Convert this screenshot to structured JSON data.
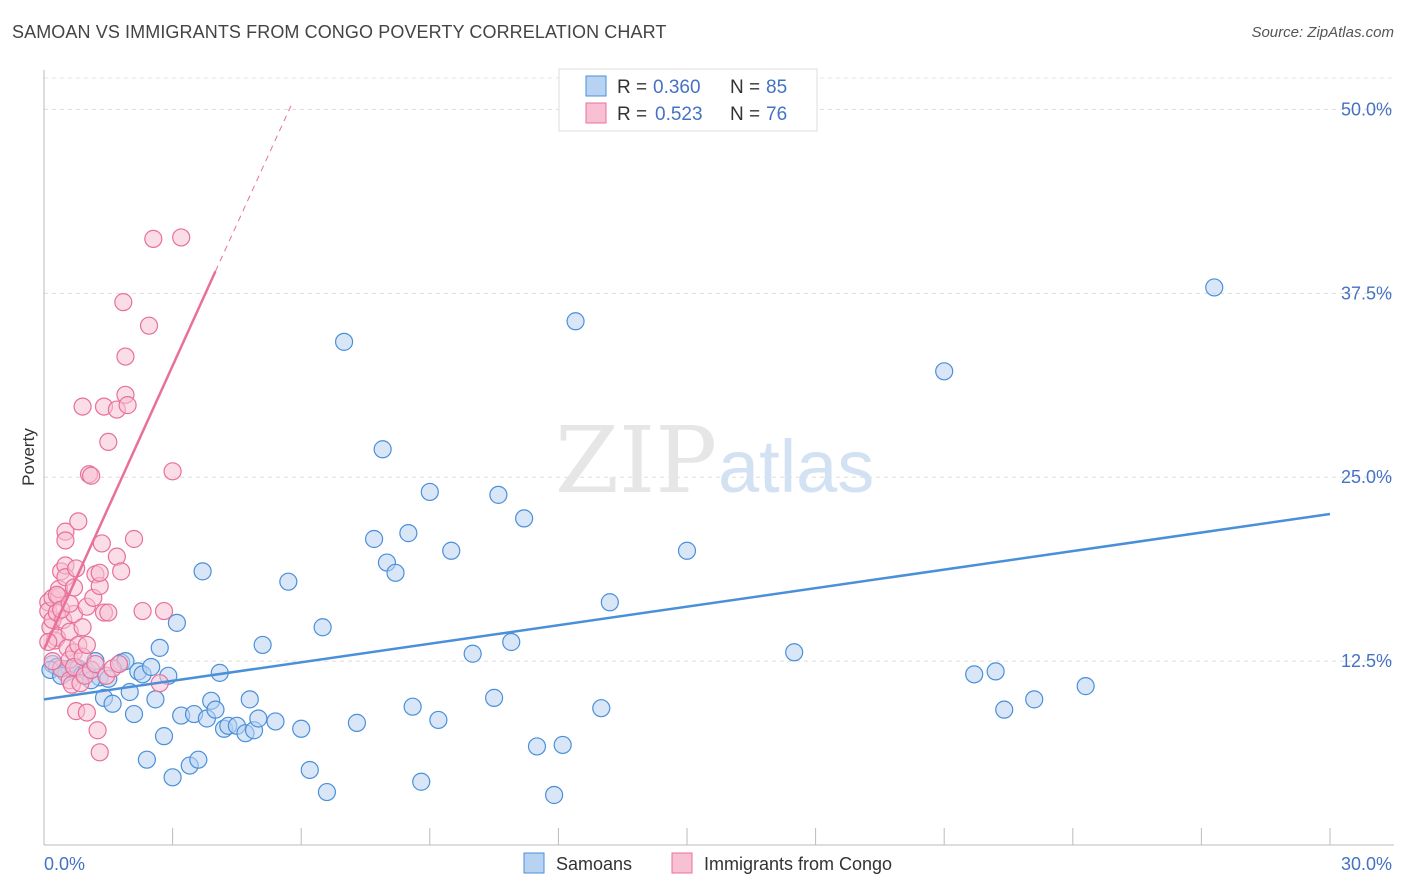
{
  "title": "SAMOAN VS IMMIGRANTS FROM CONGO POVERTY CORRELATION CHART",
  "source": "Source: ZipAtlas.com",
  "watermark": {
    "zip": "ZIP",
    "atlas": "atlas"
  },
  "colors": {
    "blue": "#4a90d9",
    "blue_fill": "#b8d2f2",
    "pink": "#e8709a",
    "pink_fill": "#f7c1d3",
    "axis_text": "#4472c4",
    "grid": "#dddddd"
  },
  "chart_data": {
    "type": "scatter",
    "title": "SAMOAN VS IMMIGRANTS FROM CONGO POVERTY CORRELATION CHART",
    "xlabel": "",
    "ylabel": "Poverty",
    "xlim": [
      0,
      30
    ],
    "ylim": [
      0,
      52
    ],
    "x_tick_labels": [
      "0.0%",
      "30.0%"
    ],
    "y_ticks": [
      12.5,
      25.0,
      37.5,
      50.0
    ],
    "y_tick_labels": [
      "12.5%",
      "25.0%",
      "37.5%",
      "50.0%"
    ],
    "legend_stats": [
      {
        "r_label": "R =",
        "r": "0.360",
        "n_label": "N =",
        "n": "85"
      },
      {
        "r_label": "R =",
        "r": "0.523",
        "n_label": "N =",
        "n": "76"
      }
    ],
    "series": [
      {
        "name": "Samoans",
        "color": "#4a90d9",
        "trend": {
          "x0": 0,
          "y0": 9.9,
          "x1": 30,
          "y1": 22.5
        },
        "points": [
          [
            0.2,
            12.3
          ],
          [
            0.3,
            12.1
          ],
          [
            0.5,
            11.7
          ],
          [
            0.6,
            12.0
          ],
          [
            0.7,
            11.9
          ],
          [
            0.8,
            12.0
          ],
          [
            0.9,
            11.6
          ],
          [
            1.0,
            11.8
          ],
          [
            1.2,
            12.5
          ],
          [
            1.3,
            11.4
          ],
          [
            1.4,
            10.0
          ],
          [
            1.5,
            11.3
          ],
          [
            1.6,
            9.6
          ],
          [
            1.8,
            12.4
          ],
          [
            1.9,
            12.5
          ],
          [
            2.0,
            10.4
          ],
          [
            2.1,
            8.9
          ],
          [
            2.2,
            11.8
          ],
          [
            2.3,
            11.6
          ],
          [
            2.4,
            5.8
          ],
          [
            2.5,
            12.1
          ],
          [
            2.6,
            9.9
          ],
          [
            2.7,
            13.4
          ],
          [
            2.8,
            7.4
          ],
          [
            2.9,
            11.5
          ],
          [
            3.0,
            4.6
          ],
          [
            3.1,
            15.1
          ],
          [
            3.2,
            8.8
          ],
          [
            3.4,
            5.4
          ],
          [
            3.5,
            8.9
          ],
          [
            3.6,
            5.8
          ],
          [
            3.7,
            18.6
          ],
          [
            3.8,
            8.6
          ],
          [
            3.9,
            9.8
          ],
          [
            4.0,
            9.2
          ],
          [
            4.1,
            11.7
          ],
          [
            4.2,
            7.9
          ],
          [
            4.3,
            8.1
          ],
          [
            4.5,
            8.1
          ],
          [
            4.7,
            7.6
          ],
          [
            4.8,
            9.9
          ],
          [
            4.9,
            7.8
          ],
          [
            5.0,
            8.6
          ],
          [
            5.1,
            13.6
          ],
          [
            5.4,
            8.4
          ],
          [
            5.7,
            17.9
          ],
          [
            6.0,
            7.9
          ],
          [
            6.2,
            5.1
          ],
          [
            6.5,
            14.8
          ],
          [
            6.6,
            3.6
          ],
          [
            7.0,
            34.2
          ],
          [
            7.3,
            8.3
          ],
          [
            7.7,
            20.8
          ],
          [
            7.9,
            26.9
          ],
          [
            8.0,
            19.2
          ],
          [
            8.2,
            18.5
          ],
          [
            8.5,
            21.2
          ],
          [
            8.6,
            9.4
          ],
          [
            8.8,
            4.3
          ],
          [
            9.0,
            24.0
          ],
          [
            9.2,
            8.5
          ],
          [
            9.5,
            20.0
          ],
          [
            10.0,
            13.0
          ],
          [
            10.5,
            10.0
          ],
          [
            10.6,
            23.8
          ],
          [
            10.9,
            13.8
          ],
          [
            11.2,
            22.2
          ],
          [
            11.5,
            6.7
          ],
          [
            11.9,
            3.4
          ],
          [
            12.1,
            6.8
          ],
          [
            12.4,
            35.6
          ],
          [
            13.0,
            9.3
          ],
          [
            13.2,
            16.5
          ],
          [
            15.0,
            20.0
          ],
          [
            17.5,
            13.1
          ],
          [
            21.0,
            32.2
          ],
          [
            21.7,
            11.6
          ],
          [
            22.2,
            11.8
          ],
          [
            22.4,
            9.2
          ],
          [
            23.1,
            9.9
          ],
          [
            24.3,
            10.8
          ],
          [
            27.3,
            37.9
          ],
          [
            0.15,
            11.9
          ],
          [
            0.4,
            11.5
          ],
          [
            1.1,
            11.2
          ]
        ]
      },
      {
        "name": "Immigrants from Congo",
        "color": "#e8709a",
        "trend": {
          "x0": 0,
          "y0": 13.3,
          "x1": 4.0,
          "y1": 39.0,
          "dash_x1": 5.8,
          "dash_y1": 50.5
        },
        "points": [
          [
            0.1,
            16.5
          ],
          [
            0.1,
            15.9
          ],
          [
            0.15,
            14.8
          ],
          [
            0.2,
            16.8
          ],
          [
            0.2,
            15.3
          ],
          [
            0.25,
            13.9
          ],
          [
            0.3,
            14.1
          ],
          [
            0.3,
            15.8
          ],
          [
            0.35,
            16.9
          ],
          [
            0.35,
            17.4
          ],
          [
            0.4,
            12.0
          ],
          [
            0.4,
            18.6
          ],
          [
            0.45,
            15.3
          ],
          [
            0.5,
            19.0
          ],
          [
            0.5,
            18.2
          ],
          [
            0.5,
            21.3
          ],
          [
            0.5,
            20.7
          ],
          [
            0.55,
            13.4
          ],
          [
            0.6,
            14.5
          ],
          [
            0.6,
            11.2
          ],
          [
            0.6,
            12.6
          ],
          [
            0.65,
            10.9
          ],
          [
            0.7,
            15.7
          ],
          [
            0.7,
            17.5
          ],
          [
            0.7,
            13.1
          ],
          [
            0.7,
            12.1
          ],
          [
            0.75,
            9.1
          ],
          [
            0.75,
            18.8
          ],
          [
            0.8,
            22.0
          ],
          [
            0.8,
            13.6
          ],
          [
            0.85,
            11.0
          ],
          [
            0.9,
            29.8
          ],
          [
            0.9,
            12.8
          ],
          [
            0.95,
            11.5
          ],
          [
            1.0,
            13.6
          ],
          [
            1.0,
            9.0
          ],
          [
            1.0,
            16.2
          ],
          [
            1.05,
            25.2
          ],
          [
            1.1,
            25.1
          ],
          [
            1.1,
            11.9
          ],
          [
            1.15,
            16.8
          ],
          [
            1.2,
            18.4
          ],
          [
            1.2,
            12.3
          ],
          [
            1.25,
            7.8
          ],
          [
            1.3,
            17.6
          ],
          [
            1.3,
            18.5
          ],
          [
            1.3,
            6.3
          ],
          [
            1.35,
            20.5
          ],
          [
            1.4,
            15.8
          ],
          [
            1.4,
            29.8
          ],
          [
            1.45,
            11.5
          ],
          [
            1.5,
            27.4
          ],
          [
            1.5,
            15.8
          ],
          [
            1.6,
            12.0
          ],
          [
            1.7,
            29.6
          ],
          [
            1.7,
            19.6
          ],
          [
            1.75,
            12.3
          ],
          [
            1.8,
            18.6
          ],
          [
            1.85,
            36.9
          ],
          [
            1.9,
            33.2
          ],
          [
            1.9,
            30.6
          ],
          [
            1.95,
            29.9
          ],
          [
            2.1,
            20.8
          ],
          [
            2.3,
            15.9
          ],
          [
            2.45,
            35.3
          ],
          [
            2.55,
            41.2
          ],
          [
            2.7,
            11.0
          ],
          [
            2.8,
            15.9
          ],
          [
            3.0,
            25.4
          ],
          [
            3.2,
            41.3
          ],
          [
            0.1,
            13.8
          ],
          [
            0.2,
            12.5
          ],
          [
            0.3,
            17.0
          ],
          [
            0.4,
            16.0
          ],
          [
            0.6,
            16.4
          ],
          [
            0.9,
            14.8
          ]
        ]
      }
    ]
  }
}
